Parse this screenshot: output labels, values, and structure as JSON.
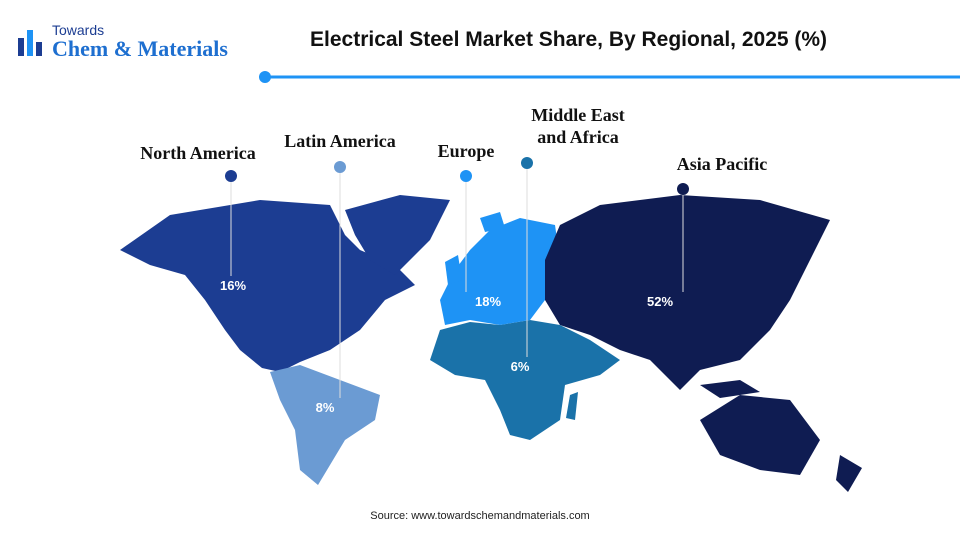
{
  "header": {
    "logo_top": "Towards",
    "logo_bottom": "Chem & Materials",
    "title": "Electrical Steel Market Share, By Regional, 2025 (%)"
  },
  "regions": [
    {
      "name": "North America",
      "share": "16%",
      "color": "#1c3d92"
    },
    {
      "name": "Latin America",
      "share": "8%",
      "color": "#6b9bd3"
    },
    {
      "name": "Europe",
      "share": "18%",
      "color": "#1e93f5"
    },
    {
      "name": "Middle East and Africa",
      "share": "6%",
      "color": "#1a72a9"
    },
    {
      "name": "Asia Pacific",
      "share": "52%",
      "color": "#0f1c52"
    }
  ],
  "source": "Source: www.towardschemandmaterials.com"
}
